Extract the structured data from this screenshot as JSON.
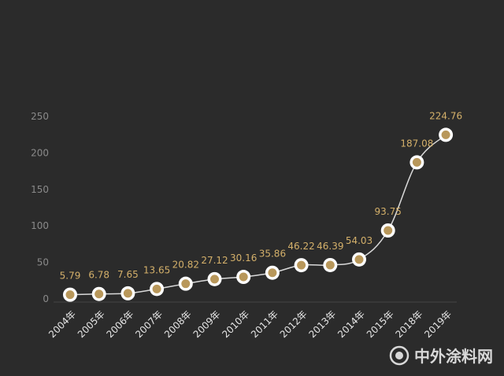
{
  "chart_data": {
    "type": "line",
    "categories": [
      "2004年",
      "2005年",
      "2006年",
      "2007年",
      "2008年",
      "2009年",
      "2010年",
      "2011年",
      "2012年",
      "2013年",
      "2014年",
      "2015年",
      "2018年",
      "2019年"
    ],
    "values": [
      5.79,
      6.78,
      7.65,
      13.65,
      20.82,
      27.12,
      30.16,
      35.86,
      46.22,
      46.39,
      54.03,
      93.75,
      187.08,
      224.76
    ],
    "labels": [
      "5.79",
      "6.78",
      "7.65",
      "13.65",
      "20.82",
      "27.12",
      "30.16",
      "35.86",
      "46.22",
      "46.39",
      "54.03",
      "93.75",
      "187.08",
      "224.76"
    ],
    "yticks": [
      "0",
      "50",
      "100",
      "150",
      "200",
      "250"
    ],
    "ylim": [
      0,
      250
    ],
    "grid": false,
    "colors": {
      "background": "#2b2b2b",
      "line": "#d9d9d9",
      "marker_fill": "#b8975a",
      "marker_ring": "#ffffff",
      "label": "#d4b06a"
    }
  },
  "watermark": {
    "text": "中外涂料网",
    "icon": "swirl-logo-icon"
  }
}
